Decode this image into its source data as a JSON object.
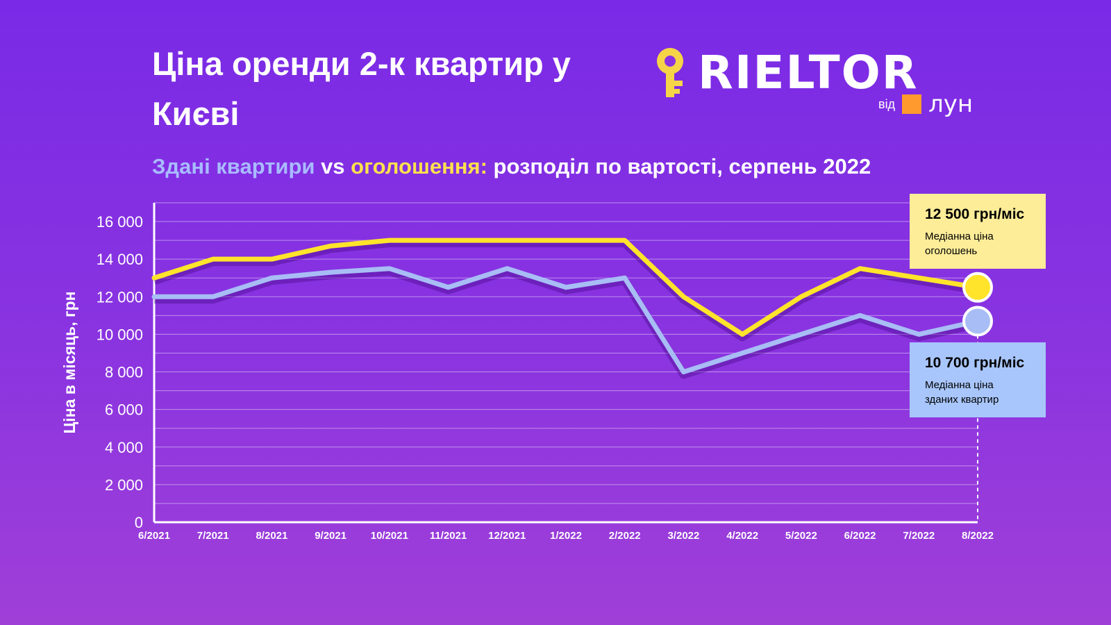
{
  "title": "Ціна оренди 2-к квартир у Києві",
  "subtitle": {
    "part1": "Здані квартири",
    "part2": " vs ",
    "part3": "оголошення:",
    "part4": " розподіл по вартості, серпень 2022"
  },
  "logo": {
    "word": "RIELTOR",
    "vid": "від",
    "lun": "лун"
  },
  "colors": {
    "listings": "#ffe42b",
    "rented": "#a8bdf5",
    "logo_key": "#f5d547",
    "logo_square": "#ff9a2e"
  },
  "annotations": {
    "listings": {
      "value": "12 500 грн/міс",
      "label": "Медіанна ціна оголошень"
    },
    "rented": {
      "value": "10 700 грн/міс",
      "label": "Медіанна ціна зданих квартир"
    }
  },
  "chart_data": {
    "type": "line",
    "ylabel": "Ціна в місяць, грн",
    "ylim": [
      0,
      17000
    ],
    "yticks": [
      0,
      2000,
      4000,
      6000,
      8000,
      10000,
      12000,
      14000,
      16000
    ],
    "ytick_labels": [
      "0",
      "2 000",
      "4 000",
      "6 000",
      "8 000",
      "10 000",
      "12 000",
      "14 000",
      "16 000"
    ],
    "grid": true,
    "x": [
      "6/2021",
      "7/2021",
      "8/2021",
      "9/2021",
      "10/2021",
      "11/2021",
      "12/2021",
      "1/2022",
      "2/2022",
      "3/2022",
      "4/2022",
      "5/2022",
      "6/2022",
      "7/2022",
      "8/2022"
    ],
    "series": [
      {
        "name": "оголошення",
        "values": [
          13000,
          14000,
          14000,
          14700,
          15000,
          15000,
          15000,
          15000,
          15000,
          12000,
          10000,
          12000,
          13500,
          13000,
          12500
        ]
      },
      {
        "name": "Здані квартири",
        "values": [
          12000,
          12000,
          13000,
          13300,
          13500,
          12500,
          13500,
          12500,
          13000,
          8000,
          9000,
          10000,
          11000,
          10000,
          10700
        ]
      }
    ]
  }
}
